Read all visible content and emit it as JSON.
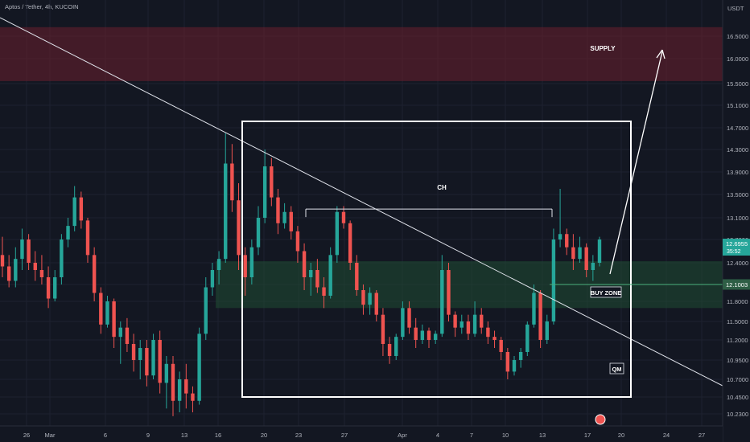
{
  "header": {
    "symbol_line": "Aptos / Tether, 4h, KUCOIN"
  },
  "chart_data": {
    "type": "candlestick",
    "symbol": "Aptos / Tether",
    "timeframe": "4h",
    "exchange": "KUCOIN",
    "currency": "USDT",
    "y_ticks": [
      "16.5000",
      "16.0000",
      "15.5000",
      "15.1000",
      "14.7000",
      "14.3000",
      "13.9000",
      "13.5000",
      "13.1000",
      "12.7000",
      "12.4000",
      "12.1000",
      "11.8000",
      "11.5000",
      "11.2000",
      "10.9500",
      "10.7000",
      "10.4500",
      "10.2300"
    ],
    "x_ticks": [
      "26",
      "Mar",
      "6",
      "9",
      "13",
      "16",
      "20",
      "23",
      "27",
      "Apr",
      "4",
      "7",
      "10",
      "13",
      "17",
      "20",
      "24",
      "27"
    ],
    "last_price": "12.6955",
    "countdown": "35:52",
    "buy_zone_price": "12.1003",
    "buy_zone_low": 11.7,
    "buy_zone_high": 12.42,
    "supply_zone_low": 15.55,
    "supply_zone_high": 16.7,
    "ch_level": 13.25,
    "candles_ohlc": [
      [
        12.5,
        12.75,
        12.2,
        12.35
      ],
      [
        12.35,
        12.5,
        12.05,
        12.15
      ],
      [
        12.15,
        12.6,
        12.05,
        12.45
      ],
      [
        12.45,
        12.9,
        12.3,
        12.7
      ],
      [
        12.7,
        12.8,
        12.3,
        12.4
      ],
      [
        12.4,
        12.55,
        12.15,
        12.3
      ],
      [
        12.3,
        12.5,
        12.1,
        12.2
      ],
      [
        12.2,
        12.35,
        11.7,
        11.85
      ],
      [
        11.85,
        12.3,
        11.8,
        12.2
      ],
      [
        12.2,
        12.8,
        12.1,
        12.7
      ],
      [
        12.7,
        13.1,
        12.6,
        12.95
      ],
      [
        12.95,
        13.65,
        12.85,
        13.45
      ],
      [
        13.45,
        13.55,
        12.9,
        13.05
      ],
      [
        13.05,
        13.1,
        12.4,
        12.5
      ],
      [
        12.5,
        12.6,
        11.8,
        11.95
      ],
      [
        11.95,
        12.05,
        11.3,
        11.45
      ],
      [
        11.45,
        11.9,
        11.4,
        11.8
      ],
      [
        11.8,
        11.85,
        11.1,
        11.25
      ],
      [
        11.25,
        11.5,
        10.9,
        11.4
      ],
      [
        11.4,
        11.55,
        11.05,
        11.15
      ],
      [
        11.15,
        11.3,
        10.8,
        10.95
      ],
      [
        10.95,
        11.2,
        10.7,
        11.1
      ],
      [
        11.1,
        11.2,
        10.6,
        10.75
      ],
      [
        10.75,
        11.3,
        10.7,
        11.2
      ],
      [
        11.2,
        11.35,
        10.5,
        10.65
      ],
      [
        10.65,
        11.0,
        10.3,
        10.9
      ],
      [
        10.9,
        11.0,
        10.2,
        10.4
      ],
      [
        10.4,
        10.8,
        10.25,
        10.7
      ],
      [
        10.7,
        10.9,
        10.3,
        10.5
      ],
      [
        10.5,
        10.6,
        10.25,
        10.4
      ],
      [
        10.4,
        11.4,
        10.35,
        11.3
      ],
      [
        11.3,
        12.2,
        11.2,
        12.05
      ],
      [
        12.05,
        12.4,
        11.9,
        12.3
      ],
      [
        12.3,
        12.55,
        12.1,
        12.45
      ],
      [
        12.45,
        14.6,
        12.4,
        14.05
      ],
      [
        14.05,
        14.4,
        13.2,
        13.4
      ],
      [
        13.4,
        13.7,
        12.3,
        12.5
      ],
      [
        12.5,
        12.6,
        11.9,
        12.2
      ],
      [
        12.2,
        12.7,
        12.1,
        12.6
      ],
      [
        12.6,
        13.3,
        12.5,
        13.1
      ],
      [
        13.1,
        14.3,
        13.0,
        14.0
      ],
      [
        14.0,
        14.15,
        13.3,
        13.45
      ],
      [
        13.45,
        13.6,
        12.8,
        13.0
      ],
      [
        13.0,
        13.35,
        12.9,
        13.2
      ],
      [
        13.2,
        13.3,
        12.7,
        12.85
      ],
      [
        12.85,
        12.95,
        12.4,
        12.55
      ],
      [
        12.55,
        12.65,
        12.0,
        12.2
      ],
      [
        12.2,
        12.4,
        11.9,
        12.3
      ],
      [
        12.3,
        12.45,
        11.95,
        12.05
      ],
      [
        12.05,
        12.2,
        11.7,
        11.9
      ],
      [
        11.9,
        12.6,
        11.85,
        12.5
      ],
      [
        12.5,
        13.3,
        12.4,
        13.2
      ],
      [
        13.2,
        13.3,
        12.9,
        13.0
      ],
      [
        13.0,
        13.05,
        12.3,
        12.4
      ],
      [
        12.4,
        12.5,
        11.9,
        12.0
      ],
      [
        12.0,
        12.1,
        11.6,
        11.75
      ],
      [
        11.75,
        12.05,
        11.6,
        11.95
      ],
      [
        11.95,
        12.0,
        11.5,
        11.6
      ],
      [
        11.6,
        11.7,
        11.0,
        11.15
      ],
      [
        11.15,
        11.25,
        10.9,
        11.0
      ],
      [
        11.0,
        11.3,
        10.95,
        11.25
      ],
      [
        11.25,
        11.8,
        11.2,
        11.7
      ],
      [
        11.7,
        11.8,
        11.3,
        11.4
      ],
      [
        11.4,
        11.55,
        11.1,
        11.2
      ],
      [
        11.2,
        11.45,
        11.15,
        11.35
      ],
      [
        11.35,
        11.4,
        11.1,
        11.2
      ],
      [
        11.2,
        11.35,
        11.15,
        11.3
      ],
      [
        11.3,
        12.5,
        11.25,
        12.3
      ],
      [
        12.3,
        12.4,
        11.5,
        11.6
      ],
      [
        11.6,
        11.65,
        11.25,
        11.4
      ],
      [
        11.4,
        11.6,
        11.3,
        11.5
      ],
      [
        11.5,
        11.6,
        11.2,
        11.3
      ],
      [
        11.3,
        11.8,
        11.25,
        11.6
      ],
      [
        11.6,
        11.7,
        11.3,
        11.4
      ],
      [
        11.4,
        11.5,
        11.15,
        11.25
      ],
      [
        11.25,
        11.35,
        11.1,
        11.2
      ],
      [
        11.2,
        11.25,
        10.95,
        11.05
      ],
      [
        11.05,
        11.1,
        10.7,
        10.8
      ],
      [
        10.8,
        11.0,
        10.75,
        10.95
      ],
      [
        10.95,
        11.1,
        10.85,
        11.05
      ],
      [
        11.05,
        11.5,
        11.0,
        11.45
      ],
      [
        11.45,
        12.1,
        11.4,
        11.95
      ],
      [
        11.95,
        12.0,
        11.1,
        11.2
      ],
      [
        11.2,
        11.6,
        11.15,
        11.5
      ],
      [
        11.5,
        12.9,
        11.45,
        12.7
      ],
      [
        12.7,
        13.6,
        12.6,
        12.8
      ],
      [
        12.8,
        12.9,
        12.5,
        12.6
      ],
      [
        12.6,
        12.8,
        12.3,
        12.45
      ],
      [
        12.45,
        12.75,
        12.4,
        12.6
      ],
      [
        12.6,
        12.65,
        12.2,
        12.3
      ],
      [
        12.3,
        12.5,
        12.15,
        12.4
      ],
      [
        12.4,
        12.75,
        12.35,
        12.7
      ]
    ],
    "annotations": [
      "SUPPLY",
      "CH",
      "BUY ZONE",
      "QM"
    ]
  }
}
